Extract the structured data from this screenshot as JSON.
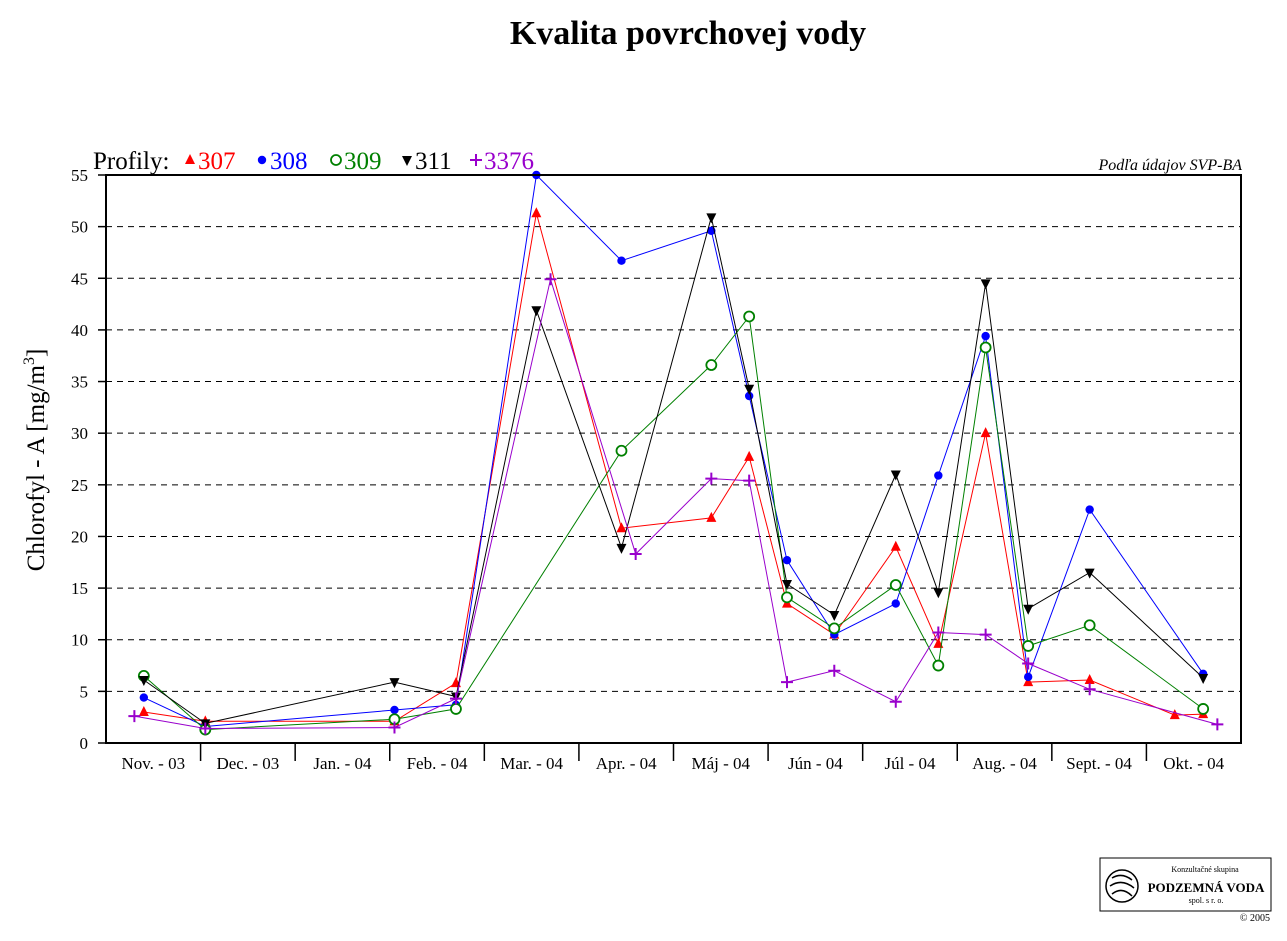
{
  "chart_data": {
    "type": "line",
    "title": "Kvalita povrchovej vody",
    "ylabel_main": "Chlorofyl - A [mg/m",
    "ylabel_sup": "3",
    "ylabel_end": "]",
    "source_note": "Podľa údajov SVP-BA",
    "legend_prefix": "Profily:",
    "ylim": [
      0,
      55
    ],
    "yticks": [
      0,
      5,
      10,
      15,
      20,
      25,
      30,
      35,
      40,
      45,
      50,
      55
    ],
    "grid": "horizontal dashed",
    "legend": "top-left",
    "categories": [
      "Nov. - 03",
      "Dec. - 03",
      "Jan. - 04",
      "Feb. - 04",
      "Mar. - 04",
      "Apr. - 04",
      "Máj - 04",
      "Jún - 04",
      "Júl - 04",
      "Aug. - 04",
      "Sept. - 04",
      "Okt. - 04"
    ],
    "series": [
      {
        "name": "307",
        "color": "#ff0000",
        "marker": "triangle-up",
        "points": [
          [
            0.4,
            3
          ],
          [
            1.05,
            2.1
          ],
          [
            3.05,
            2.1
          ],
          [
            3.7,
            5.8
          ],
          [
            4.55,
            51.3
          ],
          [
            5.45,
            20.8
          ],
          [
            6.4,
            21.8
          ],
          [
            6.8,
            27.7
          ],
          [
            7.2,
            13.5
          ],
          [
            7.7,
            10.5
          ],
          [
            8.35,
            19
          ],
          [
            8.8,
            9.6
          ],
          [
            9.3,
            30
          ],
          [
            9.75,
            5.9
          ],
          [
            10.4,
            6.1
          ],
          [
            11.3,
            2.7
          ],
          [
            11.6,
            2.8
          ]
        ]
      },
      {
        "name": "308",
        "color": "#0000ff",
        "marker": "circle",
        "points": [
          [
            0.4,
            4.4
          ],
          [
            1.05,
            1.6
          ],
          [
            3.05,
            3.2
          ],
          [
            3.7,
            3.7
          ],
          [
            4.55,
            55
          ],
          [
            5.45,
            46.7
          ],
          [
            6.4,
            49.6
          ],
          [
            6.8,
            33.6
          ],
          [
            7.2,
            17.7
          ],
          [
            7.7,
            10.5
          ],
          [
            8.35,
            13.5
          ],
          [
            8.8,
            25.9
          ],
          [
            9.3,
            39.4
          ],
          [
            9.75,
            6.4
          ],
          [
            10.4,
            22.6
          ],
          [
            11.6,
            6.7
          ]
        ]
      },
      {
        "name": "309",
        "color": "#008000",
        "marker": "circle-open",
        "points": [
          [
            0.4,
            6.5
          ],
          [
            1.05,
            1.3
          ],
          [
            3.05,
            2.3
          ],
          [
            3.7,
            3.3
          ],
          [
            5.45,
            28.3
          ],
          [
            6.4,
            36.6
          ],
          [
            6.8,
            41.3
          ],
          [
            7.2,
            14.1
          ],
          [
            7.7,
            11.1
          ],
          [
            8.35,
            15.3
          ],
          [
            8.8,
            7.5
          ],
          [
            9.3,
            38.3
          ],
          [
            9.75,
            9.4
          ],
          [
            10.4,
            11.4
          ],
          [
            11.6,
            3.3
          ]
        ]
      },
      {
        "name": "311",
        "color": "#000000",
        "marker": "triangle-down",
        "points": [
          [
            0.4,
            6.1
          ],
          [
            1.05,
            1.9
          ],
          [
            3.05,
            5.9
          ],
          [
            3.7,
            4.5
          ],
          [
            4.55,
            41.9
          ],
          [
            5.45,
            18.9
          ],
          [
            6.4,
            50.9
          ],
          [
            6.8,
            34.3
          ],
          [
            7.2,
            15.4
          ],
          [
            7.7,
            12.4
          ],
          [
            8.35,
            26
          ],
          [
            8.8,
            14.6
          ],
          [
            9.3,
            44.5
          ],
          [
            9.75,
            13
          ],
          [
            10.4,
            16.5
          ],
          [
            11.6,
            6.3
          ]
        ]
      },
      {
        "name": "3376",
        "color": "#9900cc",
        "marker": "plus",
        "points": [
          [
            0.3,
            2.6
          ],
          [
            1.05,
            1.4
          ],
          [
            3.05,
            1.5
          ],
          [
            3.7,
            4.3
          ],
          [
            4.7,
            44.9
          ],
          [
            5.6,
            18.3
          ],
          [
            6.4,
            25.6
          ],
          [
            6.8,
            25.4
          ],
          [
            7.2,
            5.9
          ],
          [
            7.7,
            7
          ],
          [
            8.35,
            4
          ],
          [
            8.8,
            10.7
          ],
          [
            9.3,
            10.5
          ],
          [
            9.75,
            7.7
          ],
          [
            10.4,
            5.2
          ],
          [
            11.75,
            1.8
          ]
        ]
      }
    ]
  },
  "logo": {
    "top_text": "Konzultačné skupina",
    "name": "PODZEMNÁ VODA",
    "sub": "spol. s r. o.",
    "copyright": "© 2005"
  }
}
